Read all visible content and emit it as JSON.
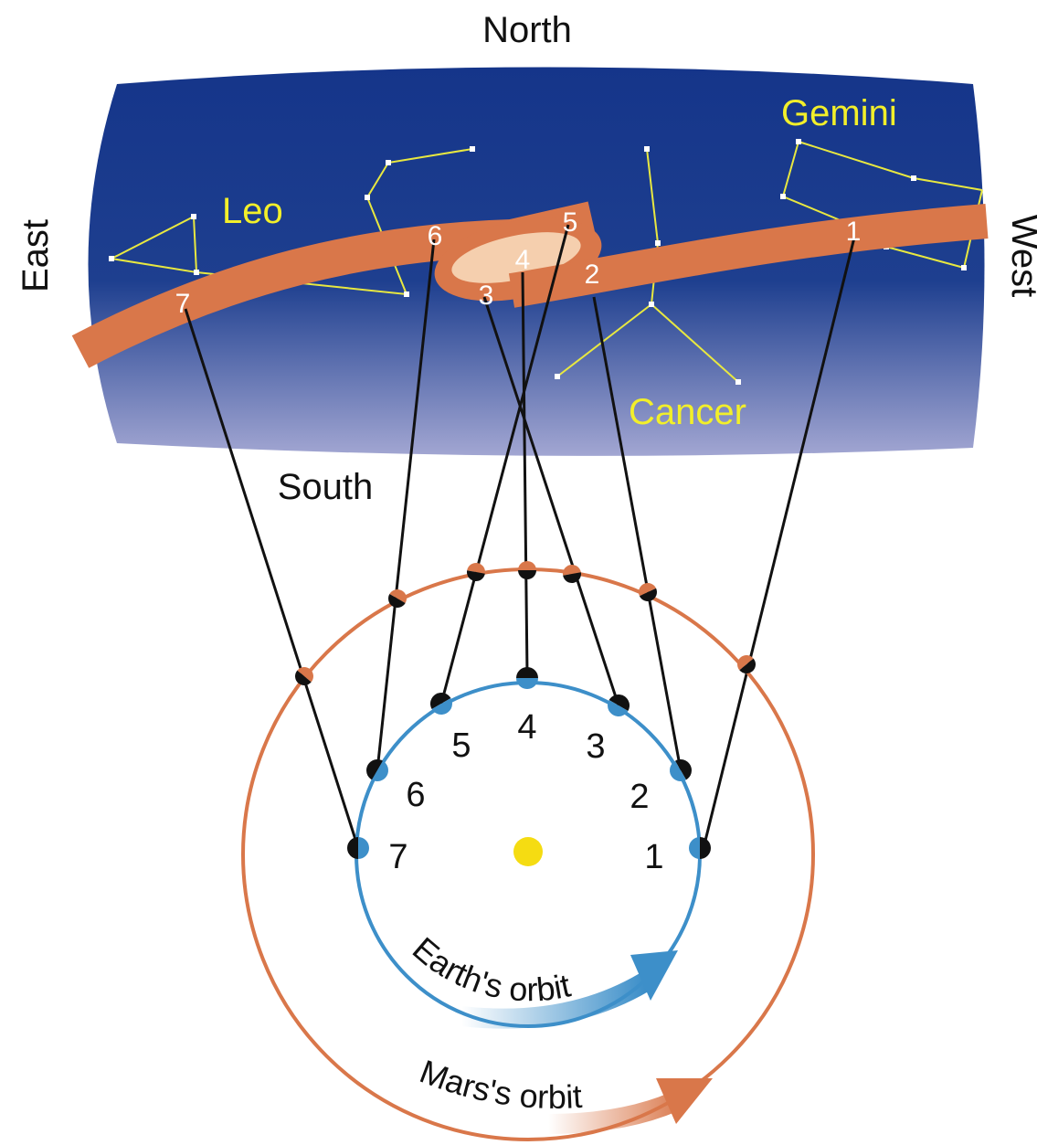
{
  "directions": {
    "north": "North",
    "south": "South",
    "east": "East",
    "west": "West"
  },
  "constellations": {
    "leo": "Leo",
    "gemini": "Gemini",
    "cancer": "Cancer"
  },
  "positions": [
    "1",
    "2",
    "3",
    "4",
    "5",
    "6",
    "7"
  ],
  "orbits": {
    "earth": "Earth's orbit",
    "mars": "Mars's orbit"
  },
  "colors": {
    "sky_top": "#1a3d8f",
    "sky_bottom": "#8a90c4",
    "path": "#d9774a",
    "path_loop_inner": "#f5cfae",
    "earth_orbit": "#3d8fc9",
    "mars_orbit": "#d9774a",
    "sun": "#f5dc12",
    "constellation_lines": "#e8e840",
    "sightline": "#111111"
  },
  "icons": {
    "sun": "sun-dot-icon",
    "earth_direction": "arrow-right-icon",
    "mars_direction": "arrow-right-icon"
  }
}
